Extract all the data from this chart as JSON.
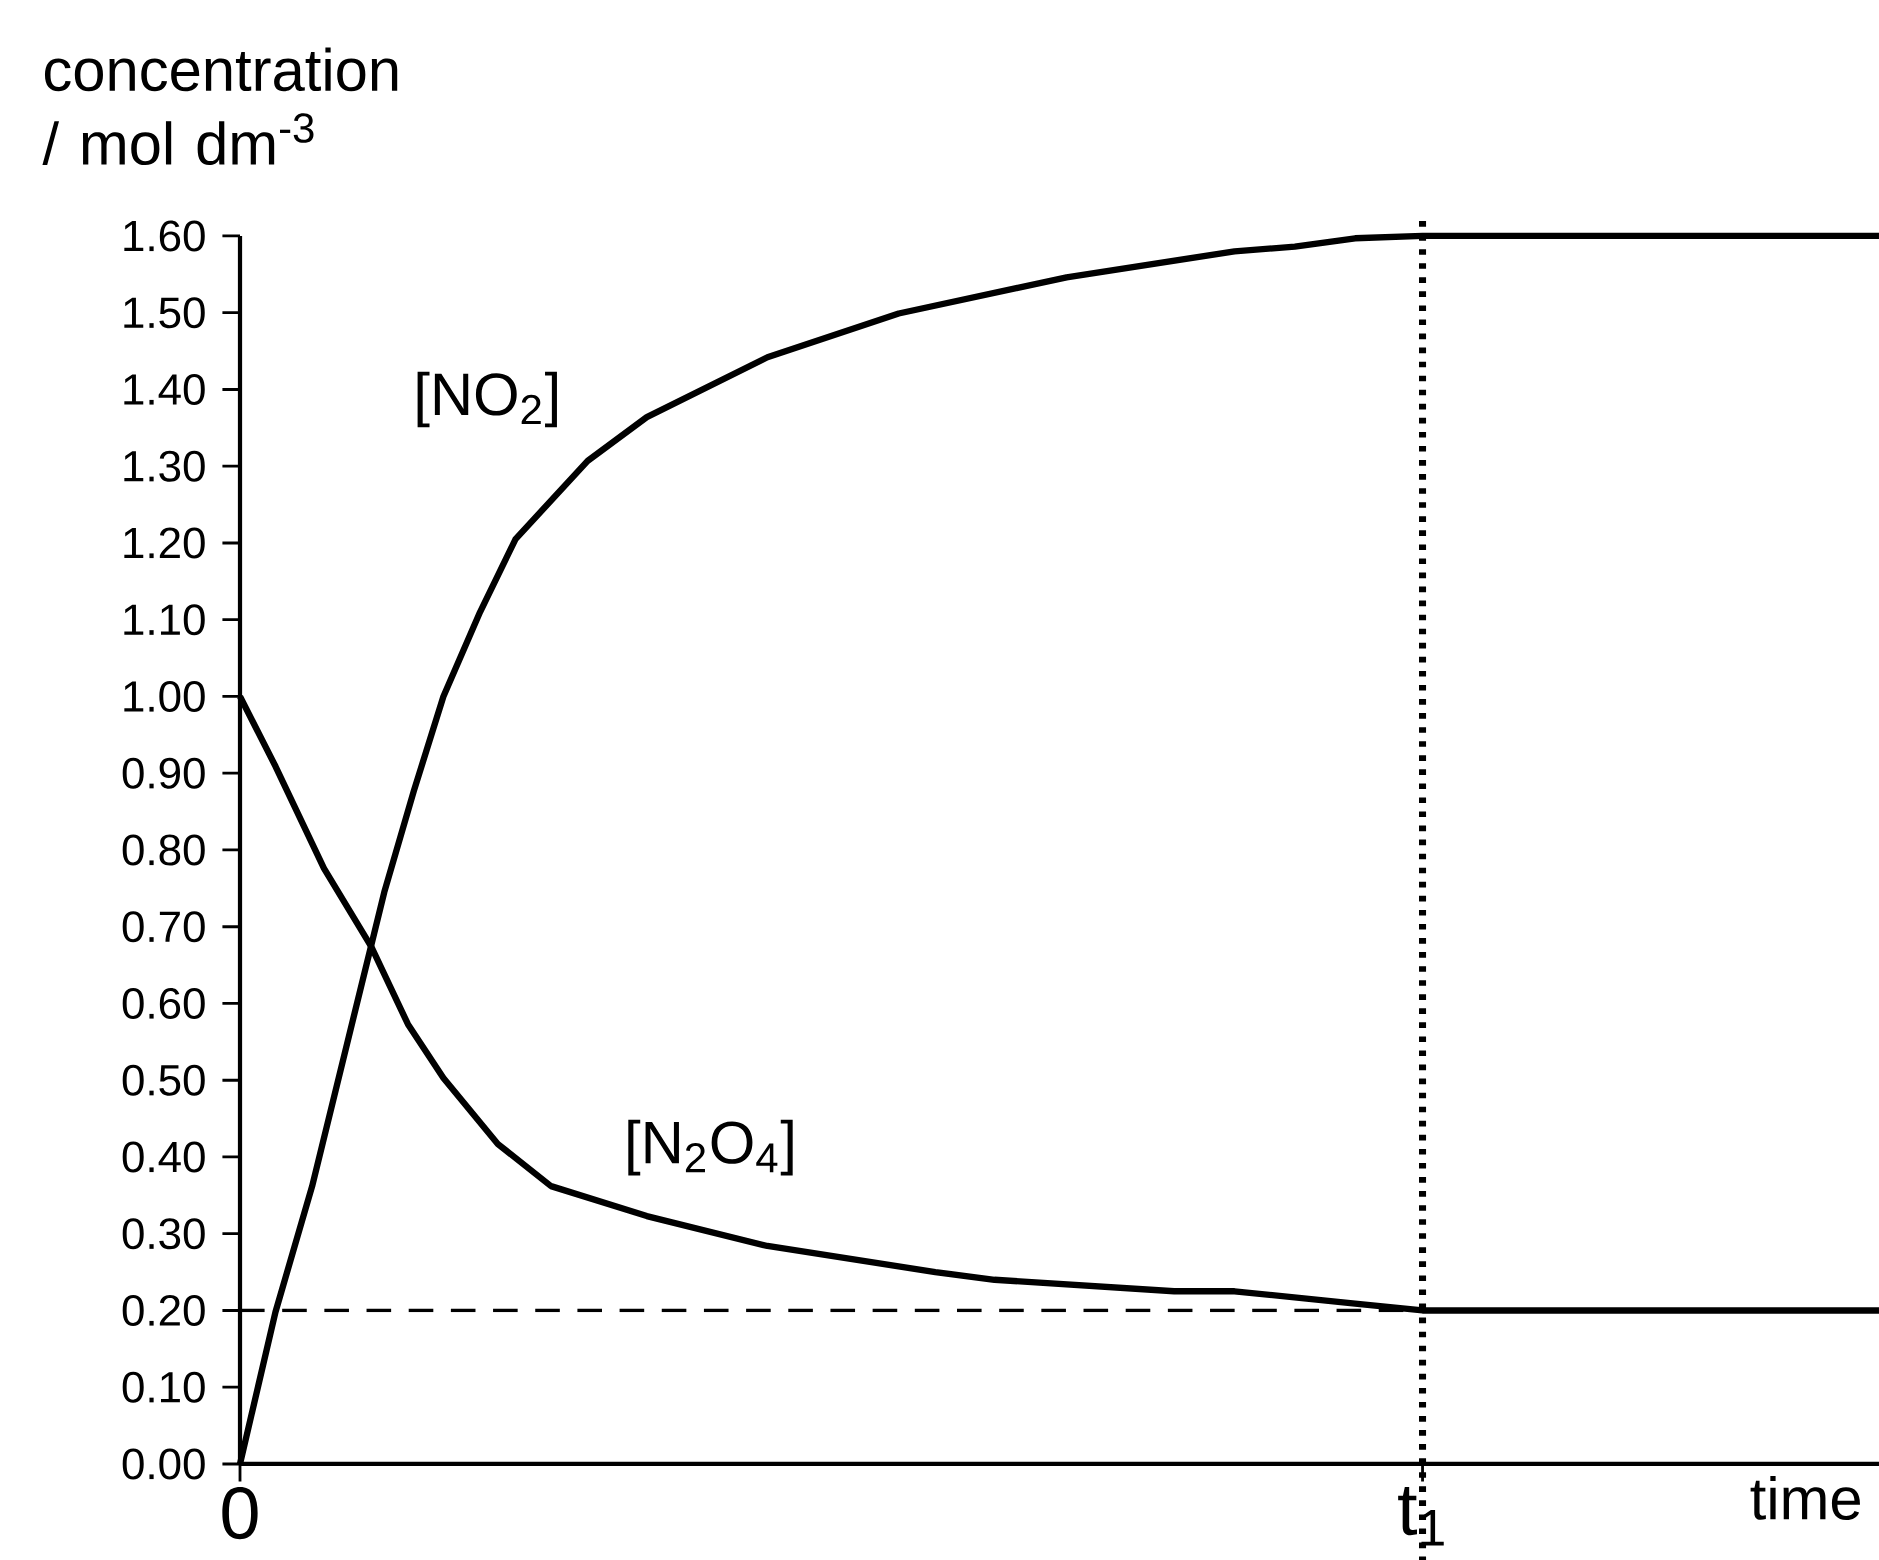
{
  "chart_data": {
    "type": "line",
    "xlabel": "time",
    "ylabel": "concentration / mol dm$^{-3}$",
    "xlim": [
      0,
      1.386
    ],
    "xticks": [
      {
        "value": 0,
        "label": "0"
      },
      {
        "value": 1,
        "label": "t$_{1}$"
      }
    ],
    "ylim": [
      0,
      1.6
    ],
    "yticks": [
      {
        "value": 0,
        "label": "0.00"
      },
      {
        "value": 0.1,
        "label": "0.10"
      },
      {
        "value": 0.2,
        "label": "0.20"
      },
      {
        "value": 0.3,
        "label": "0.30"
      },
      {
        "value": 0.4,
        "label": "0.40"
      },
      {
        "value": 0.5,
        "label": "0.50"
      },
      {
        "value": 0.6,
        "label": "0.60"
      },
      {
        "value": 0.7,
        "label": "0.70"
      },
      {
        "value": 0.8,
        "label": "0.80"
      },
      {
        "value": 0.9,
        "label": "0.90"
      },
      {
        "value": 1.0,
        "label": "1.00"
      },
      {
        "value": 1.1,
        "label": "1.10"
      },
      {
        "value": 1.2,
        "label": "1.20"
      },
      {
        "value": 1.3,
        "label": "1.30"
      },
      {
        "value": 1.4,
        "label": "1.40"
      },
      {
        "value": 1.5,
        "label": "1.50"
      },
      {
        "value": 1.6,
        "label": "1.60"
      }
    ],
    "series": [
      {
        "name": "[NO$_{2}$]",
        "color": "#000000",
        "x": [
          0,
          0.03,
          0.061,
          0.122,
          0.147,
          0.172,
          0.203,
          0.233,
          0.294,
          0.344,
          0.446,
          0.557,
          0.699,
          0.841,
          0.892,
          0.943,
          1,
          1.386
        ],
        "values": [
          0,
          0.198,
          0.362,
          0.745,
          0.877,
          1.0,
          1.11,
          1.205,
          1.307,
          1.364,
          1.442,
          1.499,
          1.546,
          1.58,
          1.586,
          1.597,
          1.6,
          1.6
        ]
      },
      {
        "name": "[N$_{2}$O$_{4}$]",
        "color": "#000000",
        "x": [
          0,
          0.03,
          0.071,
          0.111,
          0.142,
          0.172,
          0.218,
          0.263,
          0.344,
          0.446,
          0.588,
          0.638,
          0.79,
          0.841,
          0.943,
          1,
          1.386
        ],
        "values": [
          1.0,
          0.909,
          0.776,
          0.674,
          0.573,
          0.503,
          0.417,
          0.362,
          0.323,
          0.284,
          0.25,
          0.24,
          0.225,
          0.225,
          0.209,
          0.2,
          0.2
        ]
      }
    ],
    "ref_lines": [
      {
        "axis": "y",
        "value": 0.2,
        "line_style": "dashed"
      },
      {
        "axis": "x",
        "value": 1,
        "line_style": "dotted"
      }
    ],
    "grid": false,
    "marker": "none",
    "line_style": "solid"
  }
}
